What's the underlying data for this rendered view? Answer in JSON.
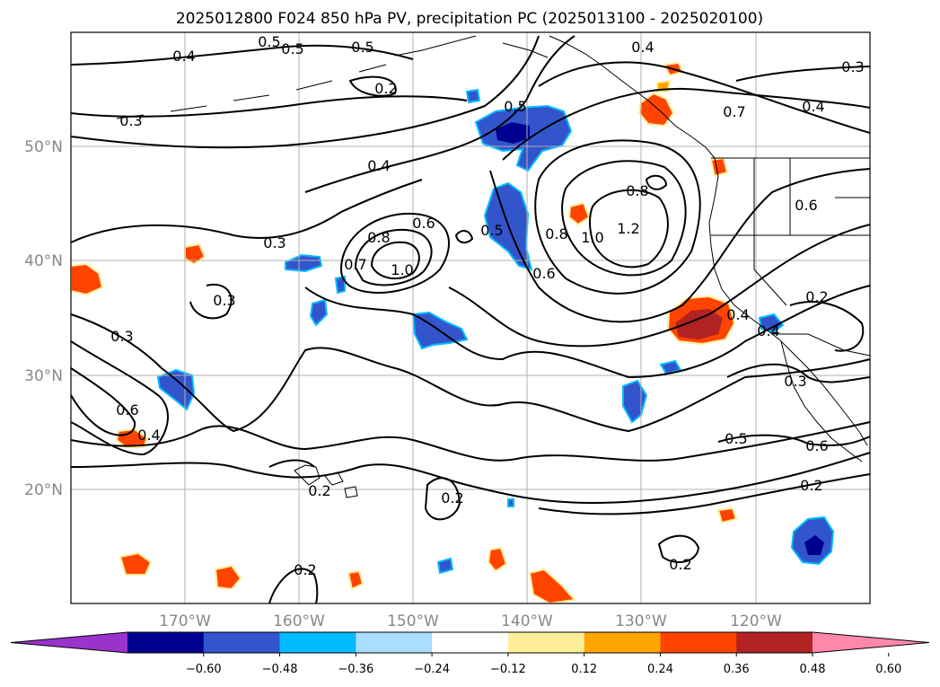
{
  "title": "2025012800 F024 850 hPa PV, precipitation PC (2025013100 - 2025020100)",
  "map": {
    "longitude_range": [
      -180,
      -110
    ],
    "latitude_range": [
      10,
      60
    ],
    "lon_ticks": [
      "170°W",
      "160°W",
      "150°W",
      "140°W",
      "130°W",
      "120°W"
    ],
    "lat_ticks": [
      "50°N",
      "40°N",
      "30°N",
      "20°N"
    ],
    "grid": true,
    "contour_labels": [
      "0.4",
      "0.5",
      "0.5",
      "0.5",
      "0.2",
      "0.3",
      "0.4",
      "0.7",
      "0.4",
      "0.3",
      "0.5",
      "0.4",
      "0.8",
      "0.6",
      "0.3",
      "0.6",
      "0.8",
      "0.7",
      "1.0",
      "0.5",
      "0.8",
      "1.0",
      "1.2",
      "0.6",
      "0.3",
      "0.3",
      "0.6",
      "0.4",
      "0.2",
      "0.4",
      "0.4",
      "0.3",
      "0.5",
      "0.6",
      "0.2",
      "0.2",
      "0.2",
      "0.2",
      "0.2"
    ]
  },
  "colorbar": {
    "ticks": [
      "−0.60",
      "−0.48",
      "−0.36",
      "−0.24",
      "−0.12",
      "0.12",
      "0.24",
      "0.36",
      "0.48",
      "0.60"
    ],
    "colors": [
      "#9933cc",
      "#000090",
      "#3355cc",
      "#00bbff",
      "#aaddff",
      "#ffffff",
      "#ffee99",
      "#ffa500",
      "#ff4400",
      "#b22222",
      "#ff88aa"
    ]
  }
}
